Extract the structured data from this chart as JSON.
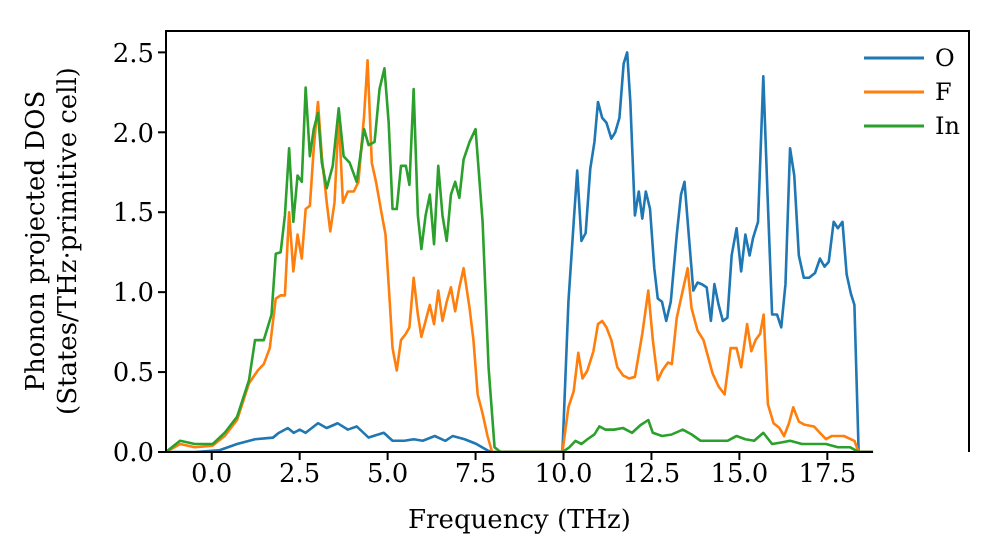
{
  "chart_data": {
    "type": "line",
    "xlabel": "Frequency (THz)",
    "ylabel": "Phonon projected DOS\n(States/THz·primitive cell)",
    "xlim": [
      -1.3,
      18.8
    ],
    "ylim": [
      0,
      2.64
    ],
    "xticks": [
      {
        "value": 0,
        "label": "0.0"
      },
      {
        "value": 2.5,
        "label": "2.5"
      },
      {
        "value": 5,
        "label": "5.0"
      },
      {
        "value": 7.5,
        "label": "7.5"
      },
      {
        "value": 10,
        "label": "10.0"
      },
      {
        "value": 12.5,
        "label": "12.5"
      },
      {
        "value": 15,
        "label": "15.0"
      },
      {
        "value": 17.5,
        "label": "17.5"
      }
    ],
    "yticks": [
      {
        "value": 0,
        "label": "0.0"
      },
      {
        "value": 0.5,
        "label": "0.5"
      },
      {
        "value": 1,
        "label": "1.0"
      },
      {
        "value": 1.5,
        "label": "1.5"
      },
      {
        "value": 2,
        "label": "2.0"
      },
      {
        "value": 2.5,
        "label": "2.5"
      }
    ],
    "legend": "top right",
    "marker": "none",
    "line_style": "solid",
    "grid": false,
    "series": [
      {
        "name": "O",
        "color": "#1f77b4",
        "x": [
          -1.3,
          -0.48,
          0.2,
          0.72,
          1.23,
          1.74,
          1.91,
          2.16,
          2.33,
          2.5,
          2.67,
          3.02,
          3.27,
          3.58,
          3.87,
          4.12,
          4.46,
          4.89,
          5.14,
          5.48,
          5.74,
          6.0,
          6.34,
          6.64,
          6.85,
          7.19,
          7.53,
          7.84,
          7.97,
          9.97,
          10.14,
          10.29,
          10.39,
          10.51,
          10.63,
          10.76,
          10.88,
          10.98,
          11.1,
          11.22,
          11.36,
          11.47,
          11.59,
          11.71,
          11.81,
          11.9,
          12.03,
          12.14,
          12.24,
          12.34,
          12.46,
          12.58,
          12.68,
          12.8,
          12.92,
          13.05,
          13.22,
          13.34,
          13.44,
          13.56,
          13.69,
          13.81,
          13.93,
          14.07,
          14.19,
          14.29,
          14.41,
          14.53,
          14.66,
          14.78,
          14.92,
          15.05,
          15.17,
          15.29,
          15.39,
          15.53,
          15.68,
          15.8,
          15.93,
          16.07,
          16.19,
          16.31,
          16.44,
          16.56,
          16.69,
          16.83,
          16.98,
          17.15,
          17.29,
          17.42,
          17.54,
          17.68,
          17.8,
          17.93,
          18.05,
          18.17,
          18.27,
          18.39,
          18.8
        ],
        "values": [
          0,
          0,
          0.01,
          0.05,
          0.08,
          0.09,
          0.12,
          0.15,
          0.12,
          0.14,
          0.12,
          0.18,
          0.15,
          0.18,
          0.14,
          0.16,
          0.09,
          0.12,
          0.07,
          0.07,
          0.08,
          0.07,
          0.1,
          0.07,
          0.1,
          0.08,
          0.05,
          0.01,
          0,
          0,
          0.94,
          1.44,
          1.76,
          1.32,
          1.37,
          1.77,
          1.94,
          2.19,
          2.09,
          2.06,
          1.96,
          2.0,
          2.09,
          2.43,
          2.5,
          2.19,
          1.48,
          1.63,
          1.46,
          1.63,
          1.52,
          1.15,
          0.96,
          0.94,
          0.82,
          0.94,
          1.36,
          1.61,
          1.69,
          1.36,
          1.01,
          1.06,
          1.05,
          1.03,
          0.82,
          1.05,
          0.92,
          0.82,
          0.84,
          1.23,
          1.4,
          1.13,
          1.36,
          1.23,
          1.34,
          1.44,
          2.35,
          1.61,
          0.86,
          0.86,
          0.78,
          1.05,
          1.9,
          1.73,
          1.23,
          1.09,
          1.09,
          1.12,
          1.21,
          1.16,
          1.19,
          1.44,
          1.4,
          1.44,
          1.11,
          0.99,
          0.92,
          0,
          0
        ]
      },
      {
        "name": "F",
        "color": "#ff7f0e",
        "x": [
          -1.3,
          -0.9,
          -0.48,
          0.03,
          0.37,
          0.72,
          1.06,
          1.31,
          1.48,
          1.65,
          1.82,
          1.96,
          2.08,
          2.2,
          2.32,
          2.44,
          2.56,
          2.67,
          2.79,
          2.9,
          3.02,
          3.13,
          3.27,
          3.37,
          3.49,
          3.61,
          3.73,
          3.87,
          4.04,
          4.17,
          4.33,
          4.43,
          4.55,
          4.67,
          4.84,
          4.94,
          5.06,
          5.14,
          5.26,
          5.38,
          5.52,
          5.62,
          5.74,
          5.86,
          5.96,
          6.08,
          6.2,
          6.32,
          6.44,
          6.56,
          6.68,
          6.8,
          6.92,
          7.04,
          7.16,
          7.33,
          7.44,
          7.56,
          7.7,
          7.84,
          7.97,
          9.97,
          10.14,
          10.29,
          10.42,
          10.54,
          10.68,
          10.85,
          10.98,
          11.1,
          11.22,
          11.36,
          11.53,
          11.69,
          11.86,
          12.03,
          12.24,
          12.41,
          12.54,
          12.68,
          12.81,
          12.97,
          13.08,
          13.22,
          13.36,
          13.53,
          13.64,
          13.81,
          13.98,
          14.24,
          14.41,
          14.58,
          14.75,
          14.92,
          15.05,
          15.22,
          15.34,
          15.46,
          15.59,
          15.69,
          15.81,
          15.97,
          16.14,
          16.27,
          16.41,
          16.53,
          16.69,
          16.86,
          17.12,
          17.29,
          17.46,
          17.63,
          17.97,
          18.27,
          18.39,
          18.8
        ],
        "values": [
          0,
          0.05,
          0.03,
          0.04,
          0.1,
          0.2,
          0.43,
          0.51,
          0.55,
          0.65,
          0.96,
          0.98,
          0.98,
          1.5,
          1.13,
          1.36,
          1.21,
          1.52,
          1.54,
          1.9,
          2.19,
          1.85,
          1.56,
          1.38,
          1.56,
          2.1,
          1.56,
          1.63,
          1.63,
          1.69,
          2.1,
          2.45,
          1.81,
          1.69,
          1.48,
          1.36,
          0.94,
          0.65,
          0.51,
          0.7,
          0.74,
          0.78,
          1.09,
          0.86,
          0.72,
          0.82,
          0.92,
          0.8,
          1.01,
          0.82,
          0.94,
          1.03,
          0.88,
          1.03,
          1.15,
          0.9,
          0.7,
          0.36,
          0.24,
          0.1,
          0,
          0,
          0.28,
          0.38,
          0.62,
          0.46,
          0.51,
          0.63,
          0.8,
          0.82,
          0.78,
          0.7,
          0.53,
          0.48,
          0.46,
          0.47,
          0.74,
          1.01,
          0.7,
          0.45,
          0.51,
          0.56,
          0.55,
          0.84,
          0.98,
          1.15,
          0.9,
          0.76,
          0.7,
          0.49,
          0.41,
          0.36,
          0.65,
          0.65,
          0.53,
          0.8,
          0.63,
          0.7,
          0.74,
          0.86,
          0.3,
          0.18,
          0.15,
          0.1,
          0.18,
          0.28,
          0.19,
          0.17,
          0.16,
          0.12,
          0.08,
          0.1,
          0.1,
          0.07,
          0,
          0
        ]
      },
      {
        "name": "In",
        "color": "#2ca02c",
        "x": [
          -1.3,
          -0.9,
          -0.48,
          0.03,
          0.37,
          0.72,
          1.06,
          1.23,
          1.48,
          1.7,
          1.82,
          1.96,
          2.08,
          2.2,
          2.32,
          2.44,
          2.56,
          2.67,
          2.79,
          2.9,
          3.02,
          3.13,
          3.27,
          3.44,
          3.61,
          3.75,
          3.92,
          4.12,
          4.33,
          4.46,
          4.63,
          4.77,
          4.91,
          5.03,
          5.14,
          5.26,
          5.38,
          5.52,
          5.62,
          5.74,
          5.86,
          5.96,
          6.08,
          6.2,
          6.32,
          6.44,
          6.56,
          6.68,
          6.8,
          6.92,
          7.04,
          7.16,
          7.33,
          7.5,
          7.7,
          7.87,
          8.04,
          8.21,
          9.97,
          10.17,
          10.34,
          10.51,
          10.68,
          10.88,
          11.02,
          11.19,
          11.44,
          11.69,
          11.95,
          12.2,
          12.41,
          12.54,
          12.8,
          13.08,
          13.39,
          13.64,
          13.9,
          14.15,
          14.41,
          14.66,
          14.92,
          15.17,
          15.42,
          15.68,
          15.93,
          16.19,
          16.44,
          16.78,
          17.12,
          17.46,
          17.8,
          18.14,
          18.39,
          18.8
        ],
        "values": [
          0,
          0.07,
          0.05,
          0.05,
          0.12,
          0.22,
          0.45,
          0.7,
          0.7,
          0.86,
          1.24,
          1.25,
          1.48,
          1.9,
          1.44,
          1.73,
          1.69,
          2.28,
          1.85,
          2.02,
          2.12,
          1.81,
          1.65,
          1.79,
          2.15,
          1.85,
          1.81,
          1.69,
          2.02,
          1.92,
          1.94,
          2.27,
          2.4,
          2.06,
          1.52,
          1.52,
          1.79,
          1.79,
          1.67,
          2.27,
          1.48,
          1.27,
          1.48,
          1.61,
          1.3,
          1.79,
          1.48,
          1.32,
          1.61,
          1.69,
          1.59,
          1.83,
          1.94,
          2.02,
          1.44,
          0.53,
          0.03,
          0,
          0,
          0.03,
          0.07,
          0.05,
          0.08,
          0.11,
          0.16,
          0.14,
          0.14,
          0.15,
          0.12,
          0.17,
          0.2,
          0.12,
          0.1,
          0.11,
          0.14,
          0.11,
          0.07,
          0.07,
          0.07,
          0.07,
          0.1,
          0.08,
          0.07,
          0.12,
          0.05,
          0.06,
          0.07,
          0.05,
          0.05,
          0.05,
          0.03,
          0.03,
          0,
          0
        ]
      }
    ]
  }
}
